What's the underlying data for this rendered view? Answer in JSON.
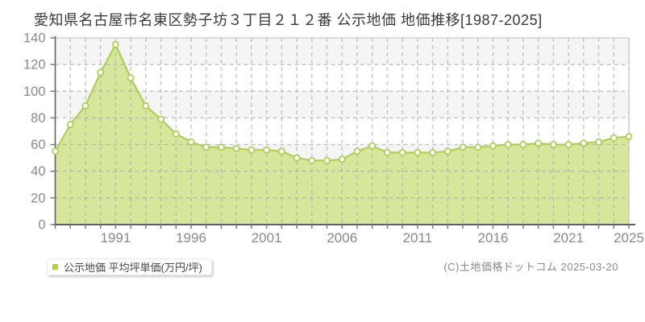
{
  "title": "愛知県名古屋市名東区勢子坊３丁目２１２番 公示地価 地価推移[1987-2025]",
  "legend": {
    "label": "公示地価 平均坪単価(万円/坪)"
  },
  "copyright": "(C)土地価格ドットコム 2025-03-20",
  "colors": {
    "area_fill": "#d6e69a",
    "line": "#afcf56",
    "marker_fill": "#ffffff",
    "legend_swatch": "#b5d43b",
    "band_gray": "#f5f5f5",
    "band_white": "#ffffff",
    "grid": "#adadad",
    "border": "#c9c9c9",
    "axis": "#606060",
    "tick": "#7a7a7a",
    "tick_label": "#8a8a8a"
  },
  "chart_data": {
    "type": "area",
    "title": "愛知県名古屋市名東区勢子坊３丁目２１２番 公示地価 地価推移[1987-2025]",
    "series_name": "公示地価 平均坪単価(万円/坪)",
    "xlabel": "",
    "ylabel": "平均坪単価(万円/坪)",
    "x": [
      1987,
      1988,
      1989,
      1990,
      1991,
      1992,
      1993,
      1994,
      1995,
      1996,
      1997,
      1998,
      1999,
      2000,
      2001,
      2002,
      2003,
      2004,
      2005,
      2006,
      2007,
      2008,
      2009,
      2010,
      2011,
      2012,
      2013,
      2014,
      2015,
      2016,
      2017,
      2018,
      2019,
      2020,
      2021,
      2022,
      2023,
      2024,
      2025
    ],
    "values": [
      55,
      75,
      89,
      114,
      135,
      110,
      89,
      79,
      68,
      62,
      58,
      58,
      57,
      56,
      56,
      55,
      50,
      48,
      48,
      49,
      55,
      59,
      54,
      54,
      54,
      54,
      55,
      58,
      58,
      59,
      60,
      60,
      61,
      60,
      60,
      61,
      62,
      65,
      66
    ],
    "ylim": [
      0,
      140
    ],
    "ytick_step": 20,
    "xticks": [
      1991,
      1996,
      2001,
      2006,
      2011,
      2016,
      2021,
      2025
    ],
    "grid": "dashed",
    "legend_position": "bottom-left"
  }
}
